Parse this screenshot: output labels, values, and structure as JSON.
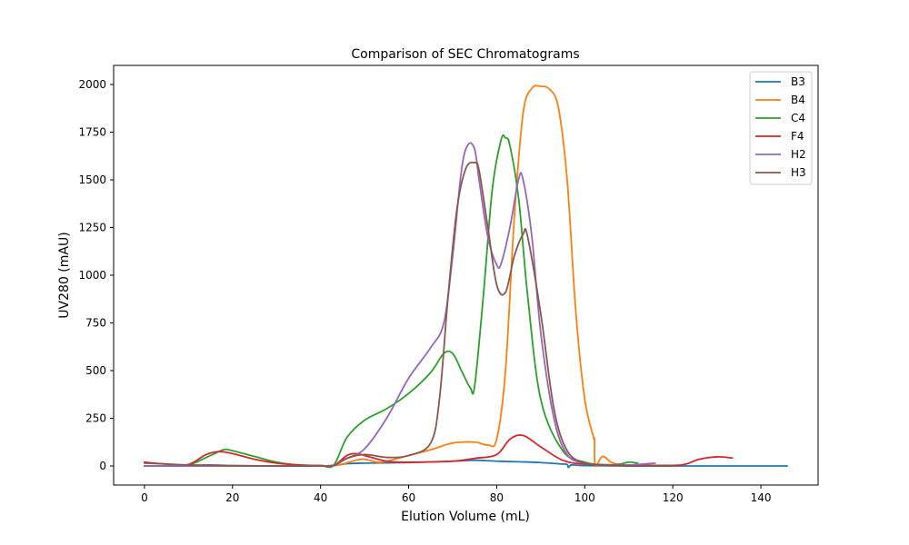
{
  "chart_data": {
    "type": "line",
    "title": "Comparison of SEC Chromatograms",
    "xlabel": "Elution Volume (mL)",
    "ylabel": "UV280 (mAU)",
    "xlim": [
      -7,
      153
    ],
    "ylim": [
      -100,
      2100
    ],
    "xticks": [
      0,
      20,
      40,
      60,
      80,
      100,
      120,
      140
    ],
    "yticks": [
      0,
      250,
      500,
      750,
      1000,
      1250,
      1500,
      1750,
      2000
    ],
    "grid": false,
    "legend_position": "top-right",
    "series": [
      {
        "name": "B3",
        "color": "#1f77b4",
        "x": [
          0,
          10,
          20,
          30,
          40,
          43,
          46,
          50,
          60,
          70,
          75,
          80,
          85,
          90,
          95,
          96,
          96.3,
          97,
          100,
          110,
          120,
          130,
          140,
          146
        ],
        "y": [
          0,
          0,
          0,
          0,
          0,
          2,
          12,
          15,
          18,
          25,
          30,
          25,
          22,
          18,
          10,
          8,
          -8,
          5,
          2,
          0,
          0,
          0,
          0,
          0
        ]
      },
      {
        "name": "B4",
        "color": "#ff7f0e",
        "x": [
          0,
          10,
          20,
          30,
          40,
          43,
          45,
          48,
          50,
          53,
          55,
          60,
          65,
          70,
          75,
          78,
          80,
          82,
          84,
          86,
          88,
          90,
          92,
          94,
          96,
          98,
          100,
          102,
          102.2,
          102.4,
          104,
          106,
          108,
          110,
          112
        ],
        "y": [
          0,
          0,
          0,
          0,
          0,
          2,
          10,
          30,
          35,
          20,
          25,
          55,
          85,
          120,
          125,
          110,
          140,
          500,
          1300,
          1850,
          1980,
          1990,
          1975,
          1880,
          1500,
          800,
          350,
          150,
          140,
          0,
          50,
          20,
          5,
          0,
          0
        ]
      },
      {
        "name": "C4",
        "color": "#2ca02c",
        "x": [
          0,
          5,
          10,
          15,
          18,
          20,
          25,
          30,
          35,
          40,
          43,
          46,
          50,
          55,
          60,
          65,
          68,
          70,
          72,
          74,
          75,
          77,
          79,
          81,
          82,
          83,
          85,
          87,
          90,
          95,
          100,
          105,
          108,
          110,
          112
        ],
        "y": [
          0,
          0,
          5,
          55,
          85,
          80,
          50,
          20,
          5,
          2,
          5,
          150,
          240,
          300,
          380,
          490,
          590,
          590,
          500,
          410,
          420,
          900,
          1450,
          1710,
          1720,
          1680,
          1400,
          900,
          350,
          80,
          20,
          5,
          10,
          20,
          15
        ]
      },
      {
        "name": "F4",
        "color": "#d62728",
        "x": [
          0,
          5,
          10,
          14,
          17,
          20,
          25,
          30,
          35,
          40,
          43,
          46,
          48,
          50,
          55,
          60,
          70,
          75,
          80,
          83,
          86,
          90,
          95,
          100,
          110,
          120,
          123,
          126,
          130,
          133.5
        ],
        "y": [
          20,
          10,
          8,
          60,
          75,
          65,
          35,
          15,
          5,
          2,
          3,
          55,
          65,
          55,
          25,
          20,
          25,
          40,
          60,
          140,
          160,
          100,
          30,
          10,
          5,
          3,
          10,
          35,
          48,
          42
        ]
      },
      {
        "name": "H2",
        "color": "#9467bd",
        "x": [
          0,
          10,
          20,
          30,
          40,
          43,
          46,
          50,
          55,
          60,
          65,
          68,
          70,
          72,
          73.5,
          75,
          76,
          78,
          80,
          81,
          83,
          85,
          86,
          88,
          90,
          93,
          96,
          100,
          105,
          110,
          116
        ],
        "y": [
          0,
          0,
          0,
          0,
          0,
          5,
          40,
          90,
          250,
          460,
          620,
          750,
          1100,
          1550,
          1685,
          1660,
          1500,
          1200,
          1055,
          1060,
          1250,
          1505,
          1500,
          1200,
          700,
          250,
          60,
          15,
          5,
          5,
          15
        ]
      },
      {
        "name": "H3",
        "color": "#8c564b",
        "x": [
          0,
          5,
          10,
          15,
          20,
          30,
          40,
          43,
          46,
          50,
          55,
          60,
          65,
          67,
          69,
          71,
          73,
          75,
          76,
          78,
          80,
          82,
          84,
          86,
          87,
          90,
          93,
          96,
          100,
          105,
          110,
          115,
          120
        ],
        "y": [
          15,
          10,
          5,
          5,
          2,
          0,
          0,
          2,
          40,
          60,
          45,
          55,
          120,
          350,
          900,
          1350,
          1560,
          1590,
          1550,
          1250,
          950,
          910,
          1100,
          1215,
          1205,
          800,
          300,
          80,
          15,
          5,
          0,
          0,
          0
        ]
      }
    ]
  }
}
